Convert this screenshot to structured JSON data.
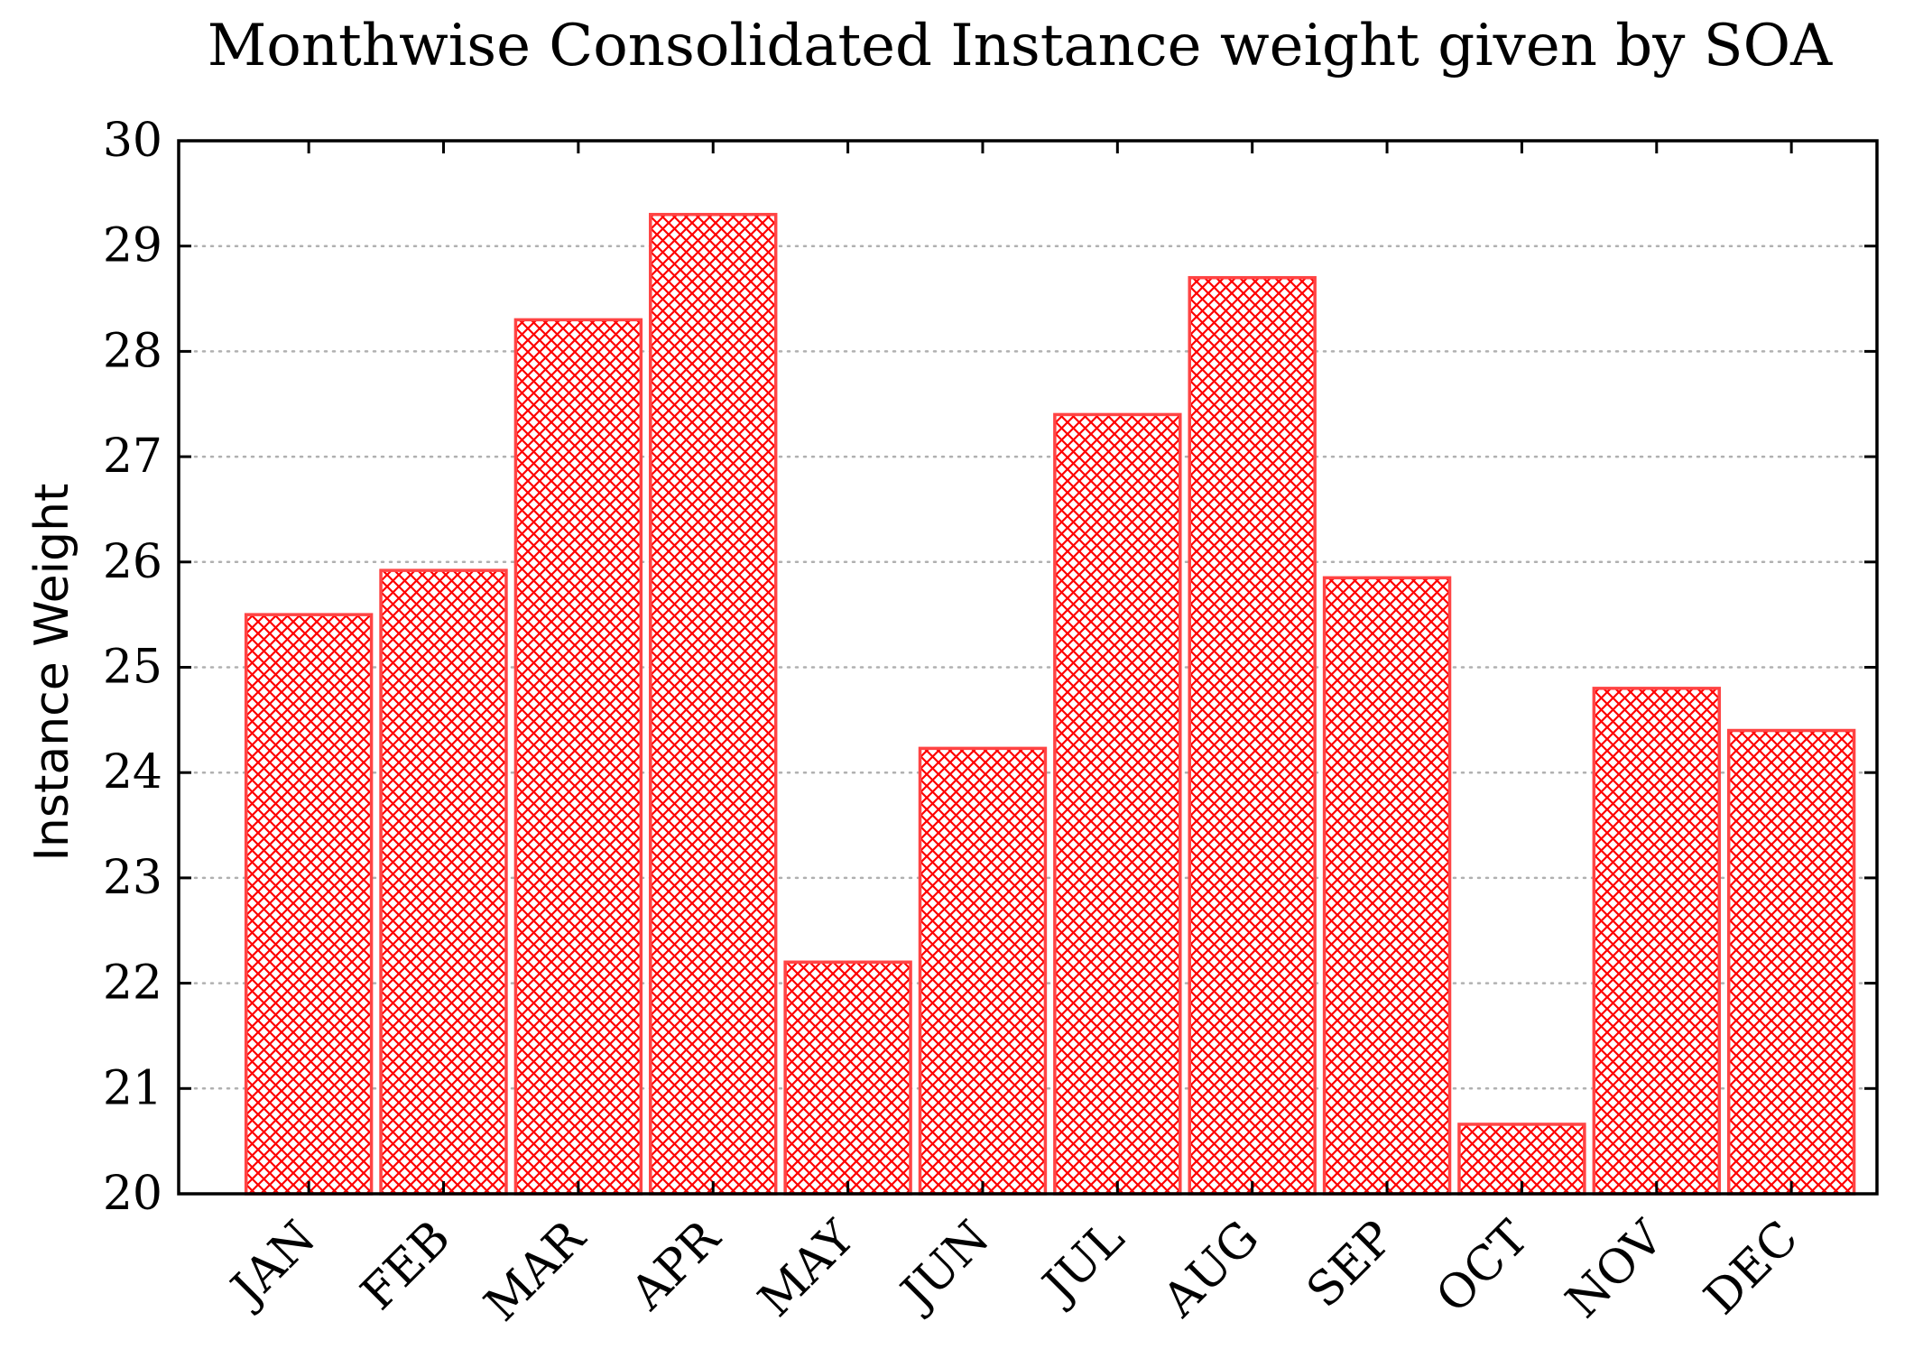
{
  "chart_data": {
    "type": "bar",
    "title": "Monthwise Consolidated Instance weight given by SOA",
    "xlabel": "",
    "ylabel": "Instance Weight",
    "categories": [
      "JAN",
      "FEB",
      "MAR",
      "APR",
      "MAY",
      "JUN",
      "JUL",
      "AUG",
      "SEP",
      "OCT",
      "NOV",
      "DEC"
    ],
    "values": [
      25.5,
      25.92,
      28.3,
      29.3,
      22.2,
      24.23,
      27.4,
      28.7,
      25.85,
      20.66,
      24.8,
      24.4
    ],
    "ylim": [
      20,
      30
    ],
    "yticks": [
      "20",
      "21",
      "22",
      "23",
      "24",
      "25",
      "26",
      "27",
      "28",
      "29",
      "30"
    ],
    "grid": "horizontal dotted",
    "legend": "none",
    "bar_color": "#ff0000",
    "bar_fill_pattern": "crosshatch"
  }
}
